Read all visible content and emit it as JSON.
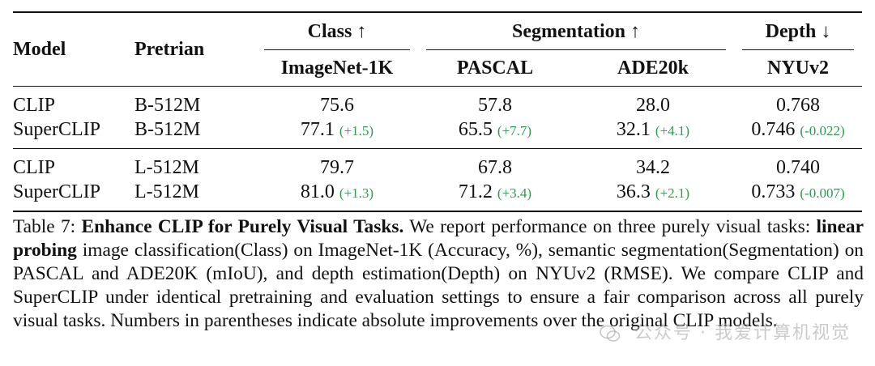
{
  "table": {
    "headers": {
      "model": "Model",
      "pretrain": "Pretrian",
      "group_class": "Class ↑",
      "group_segmentation": "Segmentation ↑",
      "group_depth": "Depth ↓",
      "col_imagenet": "ImageNet-1K",
      "col_pascal": "PASCAL",
      "col_ade": "ADE20k",
      "col_nyu": "NYUv2"
    },
    "rows": [
      {
        "model": "CLIP",
        "pretrain": "B-512M",
        "imagenet": "75.6",
        "imagenet_delta": "",
        "pascal": "57.8",
        "pascal_delta": "",
        "ade": "28.0",
        "ade_delta": "",
        "nyu": "0.768",
        "nyu_delta": ""
      },
      {
        "model": "SuperCLIP",
        "pretrain": "B-512M",
        "imagenet": "77.1",
        "imagenet_delta": "(+1.5)",
        "pascal": "65.5",
        "pascal_delta": "(+7.7)",
        "ade": "32.1",
        "ade_delta": "(+4.1)",
        "nyu": "0.746",
        "nyu_delta": "(-0.022)"
      },
      {
        "model": "CLIP",
        "pretrain": "L-512M",
        "imagenet": "79.7",
        "imagenet_delta": "",
        "pascal": "67.8",
        "pascal_delta": "",
        "ade": "34.2",
        "ade_delta": "",
        "nyu": "0.740",
        "nyu_delta": ""
      },
      {
        "model": "SuperCLIP",
        "pretrain": "L-512M",
        "imagenet": "81.0",
        "imagenet_delta": "(+1.3)",
        "pascal": "71.2",
        "pascal_delta": "(+3.4)",
        "ade": "36.3",
        "ade_delta": "(+2.1)",
        "nyu": "0.733",
        "nyu_delta": "(-0.007)"
      }
    ],
    "delta_color": "#2e9a4f"
  },
  "caption": {
    "label": "Table 7:",
    "title": "Enhance CLIP for Purely Visual Tasks.",
    "text1": "We report performance on three purely visual tasks:",
    "bold_term": "linear probing",
    "text2": "image classification(Class) on ImageNet-1K (Accuracy, %), semantic segmentation(Segmentation) on PASCAL and ADE20K (mIoU), and depth estimation(Depth) on NYUv2 (RMSE). We compare CLIP and SuperCLIP under identical pretraining and evaluation settings to ensure a fair comparison across all purely visual tasks. Numbers in parentheses indicate absolute improvements over the original CLIP models."
  },
  "watermark": {
    "text": "公众号 · 我爱计算机视觉",
    "icon": "wechat-logo-icon"
  }
}
